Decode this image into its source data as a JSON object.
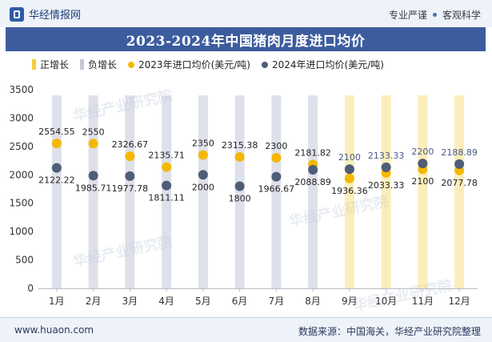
{
  "header": {
    "brand": "华经情报网",
    "tagline_left": "专业严谨",
    "tagline_right": "客观科学"
  },
  "title": "2023-2024年中国猪肉月度进口均价",
  "legend": [
    {
      "label": "正增长",
      "kind": "bar",
      "color": "#f5cd3c"
    },
    {
      "label": "负增长",
      "kind": "bar",
      "color": "#c3c9d8"
    },
    {
      "label": "2023年进口均价(美元/吨)",
      "kind": "dot",
      "color": "#f5b800"
    },
    {
      "label": "2024年进口均价(美元/吨)",
      "kind": "dot",
      "color": "#4e5d78"
    }
  ],
  "watermark": "华经产业研究院",
  "chart_data": {
    "type": "scatter",
    "title": "2023-2024年中国猪肉月度进口均价",
    "categories": [
      "1月",
      "2月",
      "3月",
      "4月",
      "5月",
      "6月",
      "7月",
      "8月",
      "9月",
      "10月",
      "11月",
      "12月"
    ],
    "series": [
      {
        "name": "2023年进口均价(美元/吨)",
        "color": "#f5b800",
        "values": [
          2554.55,
          2550,
          2326.67,
          2135.71,
          2350,
          2315.38,
          2300,
          2181.82,
          1936.36,
          2033.33,
          2100,
          2077.78
        ],
        "labels": [
          "2554.55",
          "2550",
          "2326.67",
          "2135.71",
          "2350",
          "2315.38",
          "2300",
          "2181.82",
          "1936.36",
          "2033.33",
          "2100",
          "2077.78"
        ]
      },
      {
        "name": "2024年进口均价(美元/吨)",
        "color": "#4e5d78",
        "values": [
          2122.22,
          1985.71,
          1977.78,
          1811.11,
          2000,
          1800,
          1966.67,
          2088.89,
          2100,
          2133.33,
          2200,
          2188.89
        ],
        "labels": [
          "2122.22",
          "1985.71",
          "1977.78",
          "1811.11",
          "2000",
          "1800",
          "1966.67",
          "2088.89",
          "2100",
          "2133.33",
          "2200",
          "2188.89"
        ]
      }
    ],
    "change_bars": [
      {
        "type": "负增长",
        "value": 3400
      },
      {
        "type": "负增长",
        "value": 3400
      },
      {
        "type": "负增长",
        "value": 3400
      },
      {
        "type": "负增长",
        "value": 3400
      },
      {
        "type": "负增长",
        "value": 3400
      },
      {
        "type": "负增长",
        "value": 3400
      },
      {
        "type": "负增长",
        "value": 3400
      },
      {
        "type": "负增长",
        "value": 3400
      },
      {
        "type": "正增长",
        "value": 3400
      },
      {
        "type": "正增长",
        "value": 3400
      },
      {
        "type": "正增长",
        "value": 3400
      },
      {
        "type": "正增长",
        "value": 3400
      }
    ],
    "bar_colors": {
      "正增长": "#f5cd3c",
      "负增长": "#c3c9d8"
    },
    "ylim": [
      0,
      3500
    ],
    "yticks": [
      0,
      500,
      1000,
      1500,
      2000,
      2500,
      3000,
      3500
    ],
    "xlabel": "",
    "ylabel": "",
    "grid": false,
    "legend_position": "top"
  },
  "footer": {
    "url": "www.huaon.com",
    "source": "数据来源：中国海关，华经产业研究院整理"
  }
}
